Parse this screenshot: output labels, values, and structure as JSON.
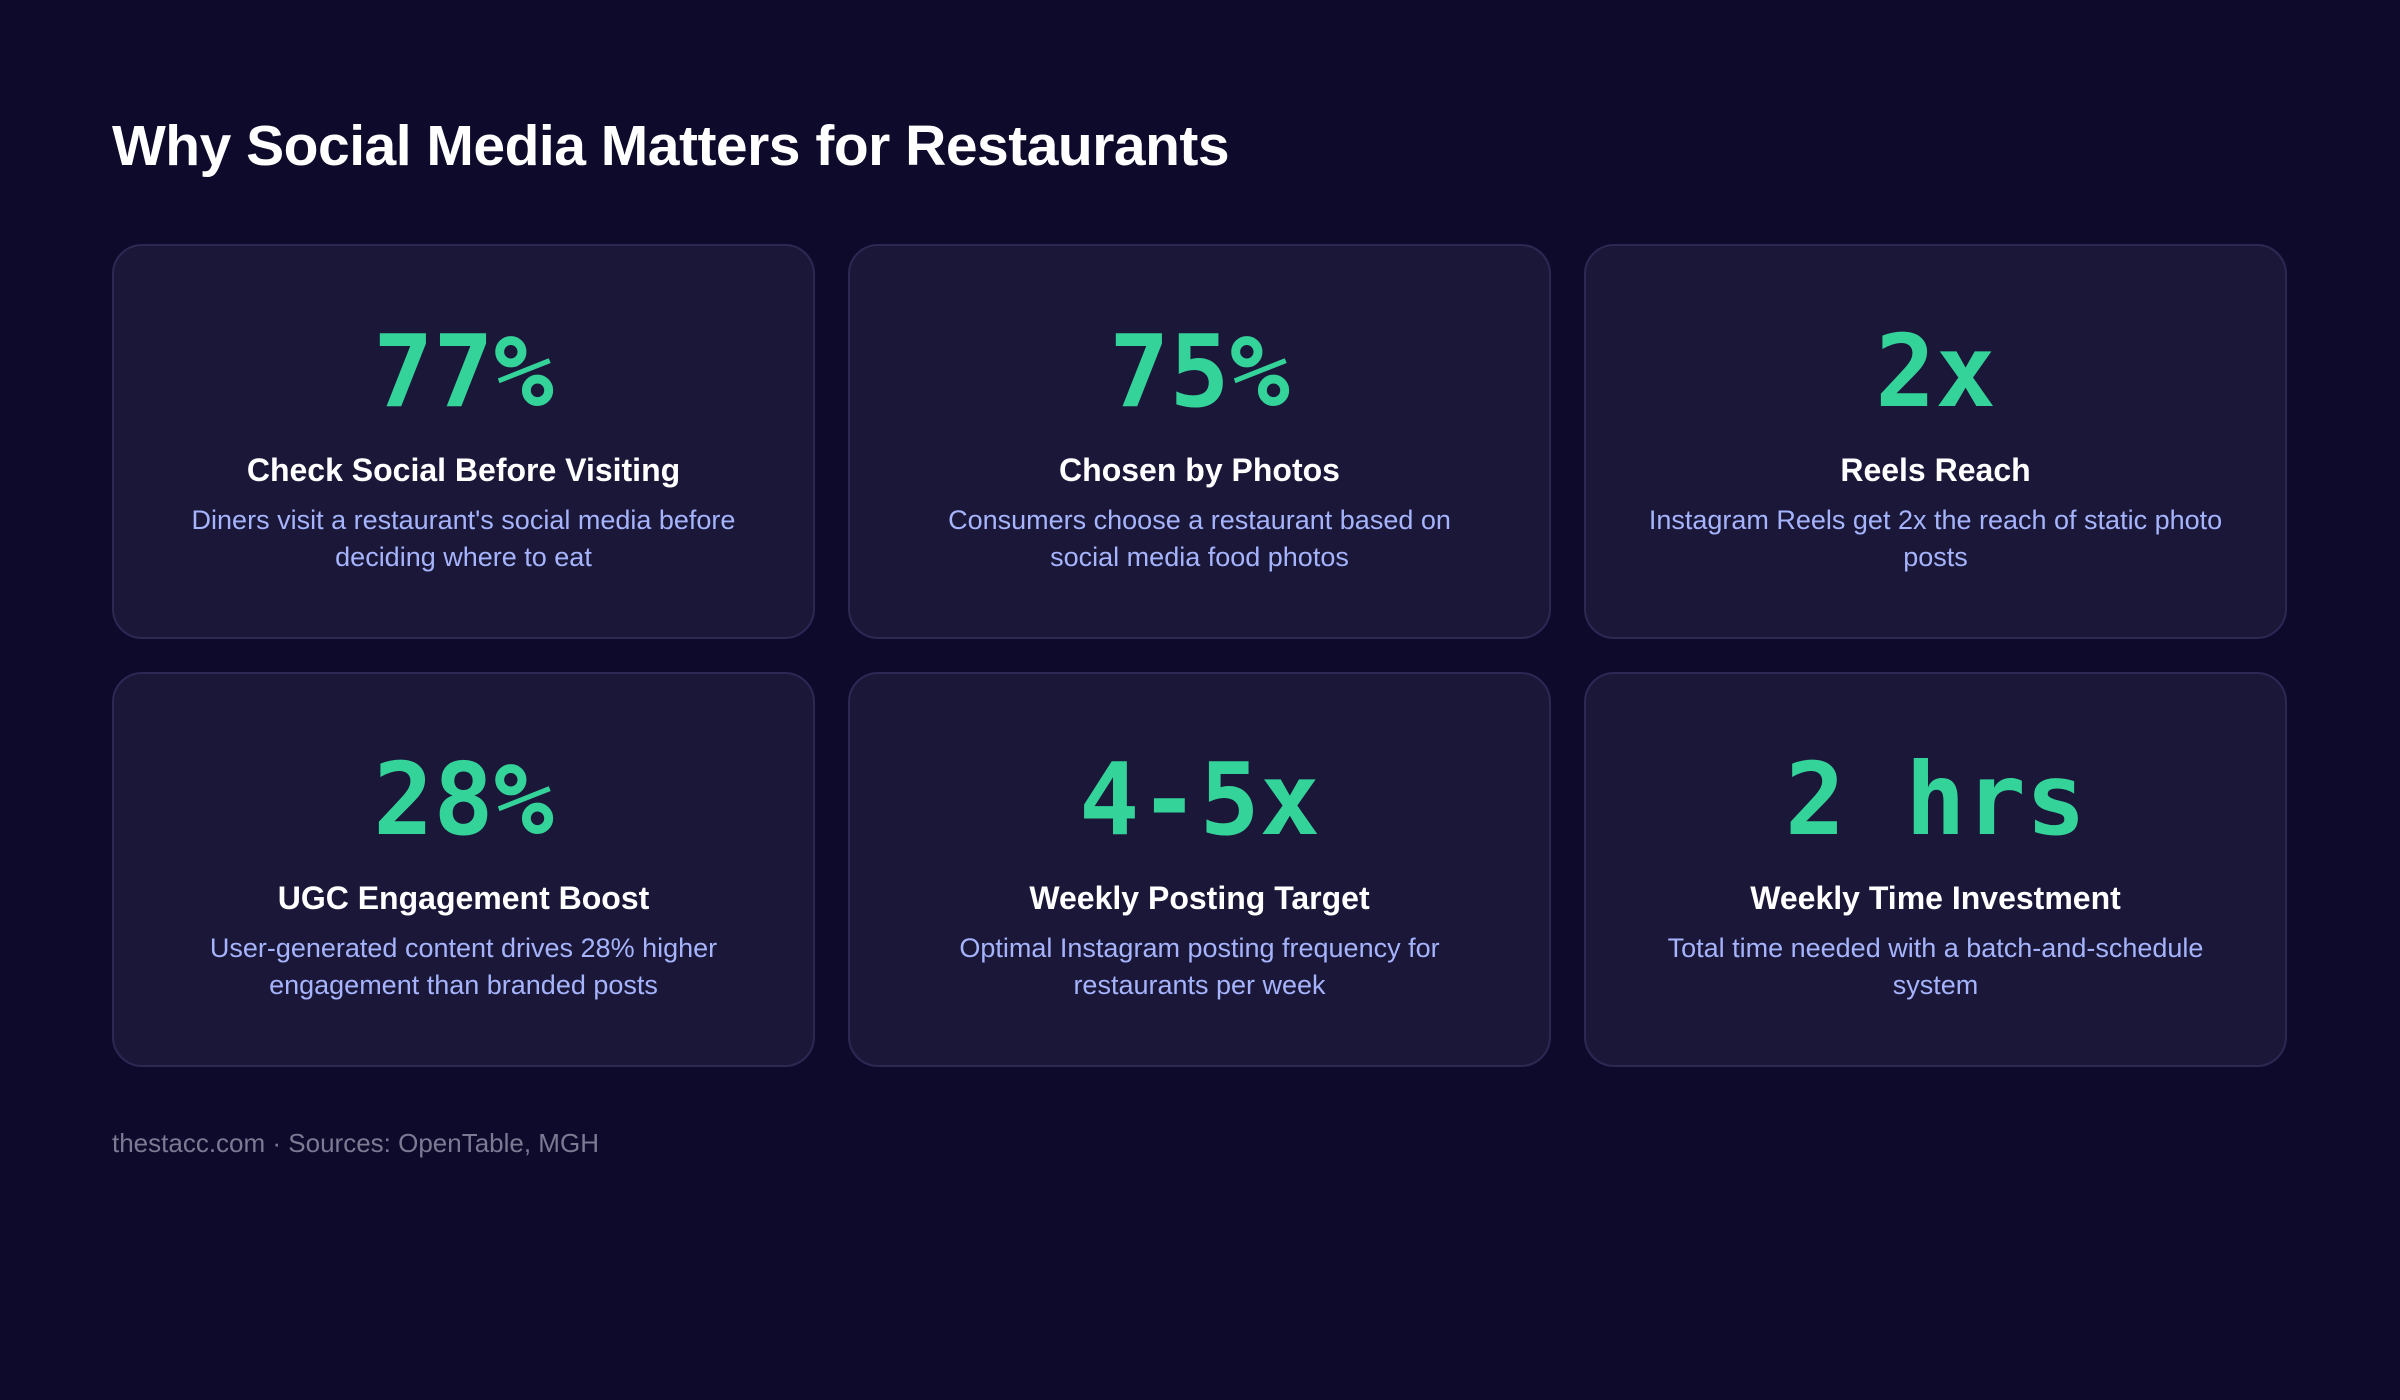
{
  "title": "Why Social Media Matters for Restaurants",
  "cards": [
    {
      "stat": "77%",
      "title": "Check Social Before Visiting",
      "description": "Diners visit a restaurant's social media before deciding where to eat"
    },
    {
      "stat": "75%",
      "title": "Chosen by Photos",
      "description": "Consumers choose a restaurant based on social media food photos"
    },
    {
      "stat": "2x",
      "title": "Reels Reach",
      "description": "Instagram Reels get 2x the reach of static photo posts"
    },
    {
      "stat": "28%",
      "title": "UGC Engagement Boost",
      "description": "User-generated content drives 28% higher engagement than branded posts"
    },
    {
      "stat": "4-5x",
      "title": "Weekly Posting Target",
      "description": "Optimal Instagram posting frequency for restaurants per week"
    },
    {
      "stat": "2 hrs",
      "title": "Weekly Time Investment",
      "description": "Total time needed with a batch-and-schedule system"
    }
  ],
  "footer": "thestacc.com · Sources: OpenTable, MGH",
  "colors": {
    "background": "#0d0a2b",
    "card": "#1b1739",
    "accent": "#34d399",
    "description": "#a5b4fc"
  }
}
